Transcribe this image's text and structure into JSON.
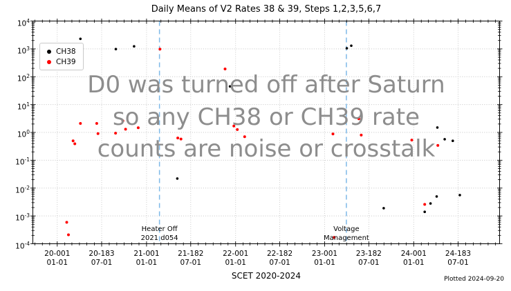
{
  "watermark": {
    "lines": [
      "D0 was turned off after Saturn",
      "so any CH38 or CH39 rate",
      "counts are noise or crosstalk"
    ],
    "color": "#8d8d8d"
  },
  "footer": {
    "plotted_label": "Plotted 2024-09-20"
  },
  "colors": {
    "axis": "#000000",
    "grid": "#c4c4c4",
    "event_line": "#7db9e8",
    "ch38": "#000000",
    "ch39": "#ff0000",
    "background": "#ffffff"
  },
  "chart_data": {
    "type": "scatter",
    "title": "Daily Means of V2 Rates 38 & 39, Steps 1,2,3,5,6,7",
    "xlabel": "SCET 2020-2024",
    "ylabel": "",
    "y_scale": "log",
    "ylim": [
      0.0001,
      10000
    ],
    "x_unit": "days since 2020-001 (SCET)",
    "xlim": [
      -100,
      1813
    ],
    "grid": true,
    "legend_position": "upper left",
    "y_tick_exponents": [
      4,
      3,
      2,
      1,
      0,
      -1,
      -2,
      -3,
      -4
    ],
    "x_ticks": [
      {
        "t": 0,
        "top": "20-001",
        "bottom": "01-01"
      },
      {
        "t": 182,
        "top": "20-183",
        "bottom": "07-01"
      },
      {
        "t": 366,
        "top": "21-001",
        "bottom": "01-01"
      },
      {
        "t": 547,
        "top": "21-182",
        "bottom": "07-01"
      },
      {
        "t": 731,
        "top": "22-001",
        "bottom": "01-01"
      },
      {
        "t": 912,
        "top": "22-182",
        "bottom": "07-01"
      },
      {
        "t": 1096,
        "top": "23-001",
        "bottom": "01-01"
      },
      {
        "t": 1277,
        "top": "23-182",
        "bottom": "07-01"
      },
      {
        "t": 1461,
        "top": "24-001",
        "bottom": "01-01"
      },
      {
        "t": 1643,
        "top": "24-183",
        "bottom": "07-01"
      }
    ],
    "series": [
      {
        "name": "CH38",
        "color": "#000000",
        "marker_radius": 1.8,
        "points": [
          [
            95,
            2300
          ],
          [
            240,
            980
          ],
          [
            315,
            1230
          ],
          [
            492,
            0.022
          ],
          [
            708,
            45
          ],
          [
            1187,
            1050
          ],
          [
            1205,
            1300
          ],
          [
            1338,
            0.0019
          ],
          [
            1506,
            0.0014
          ],
          [
            1530,
            0.0028
          ],
          [
            1555,
            0.005
          ],
          [
            1558,
            1.5
          ],
          [
            1588,
            0.57
          ],
          [
            1621,
            0.5
          ],
          [
            1650,
            0.0056
          ]
        ]
      },
      {
        "name": "CH39",
        "color": "#ff0000",
        "marker_radius": 2.0,
        "points": [
          [
            39,
            0.00059
          ],
          [
            46,
            0.00021
          ],
          [
            65,
            0.5
          ],
          [
            72,
            0.39
          ],
          [
            95,
            2.1
          ],
          [
            162,
            2.1
          ],
          [
            167,
            0.9
          ],
          [
            239,
            0.94
          ],
          [
            269,
            2.6
          ],
          [
            280,
            1.3
          ],
          [
            332,
            1.47
          ],
          [
            421,
            980
          ],
          [
            494,
            0.63
          ],
          [
            507,
            0.58
          ],
          [
            688,
            190
          ],
          [
            724,
            1.7
          ],
          [
            738,
            1.26
          ],
          [
            768,
            0.7
          ],
          [
            1130,
            0.88
          ],
          [
            1135,
            0.00017
          ],
          [
            1236,
            3.1
          ],
          [
            1246,
            0.8
          ],
          [
            1453,
            0.53
          ],
          [
            1506,
            0.0026
          ],
          [
            1560,
            0.34
          ]
        ]
      }
    ],
    "event_lines": [
      {
        "t": 419,
        "label_lines": [
          "Heater Off",
          "2021 d054"
        ]
      },
      {
        "t": 1185,
        "label_lines": [
          "Voltage",
          "Management"
        ]
      }
    ]
  }
}
